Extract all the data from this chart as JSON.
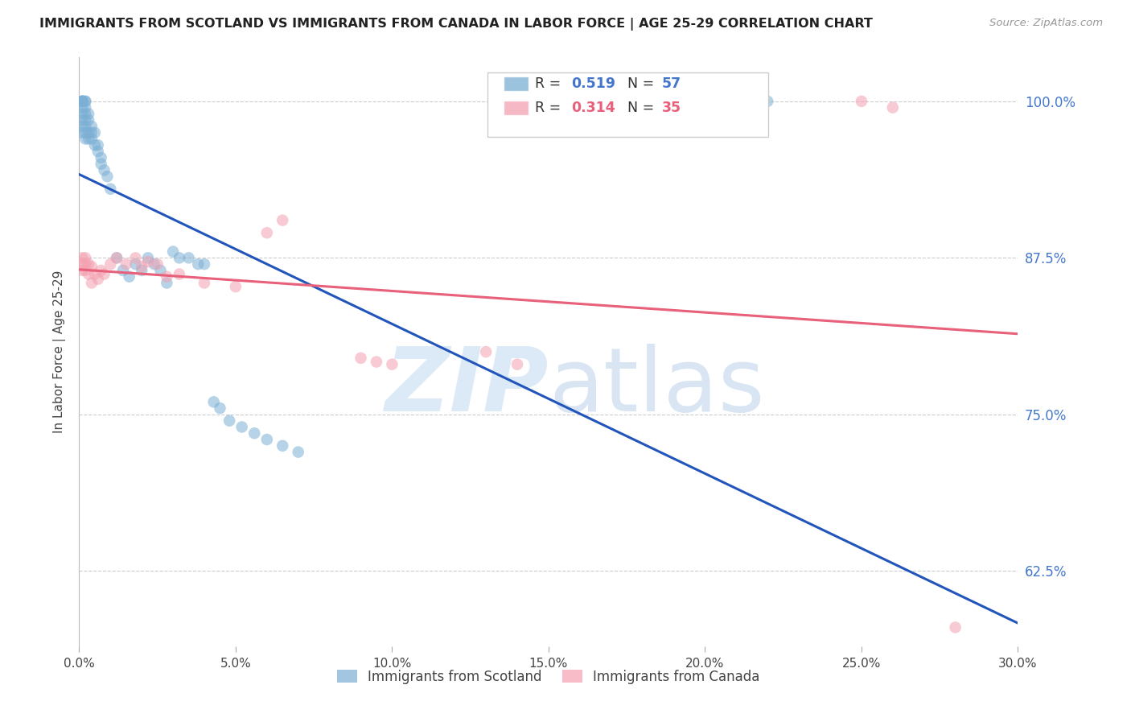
{
  "title": "IMMIGRANTS FROM SCOTLAND VS IMMIGRANTS FROM CANADA IN LABOR FORCE | AGE 25-29 CORRELATION CHART",
  "source": "Source: ZipAtlas.com",
  "ylabel": "In Labor Force | Age 25-29",
  "x_min": 0.0,
  "x_max": 0.3,
  "y_min": 0.565,
  "y_max": 1.035,
  "yticks": [
    0.625,
    0.75,
    0.875,
    1.0
  ],
  "ytick_labels": [
    "62.5%",
    "75.0%",
    "87.5%",
    "100.0%"
  ],
  "xticks": [
    0.0,
    0.05,
    0.1,
    0.15,
    0.2,
    0.25,
    0.3
  ],
  "xtick_labels": [
    "0.0%",
    "5.0%",
    "10.0%",
    "15.0%",
    "20.0%",
    "25.0%",
    "30.0%"
  ],
  "scotland_R": 0.519,
  "scotland_N": 57,
  "canada_R": 0.314,
  "canada_N": 35,
  "scotland_color": "#7BAFD4",
  "canada_color": "#F4A0B0",
  "scotland_line_color": "#2255BB",
  "canada_line_color": "#E8607A",
  "scotland_x": [
    0.001,
    0.001,
    0.001,
    0.001,
    0.001,
    0.001,
    0.001,
    0.001,
    0.001,
    0.001,
    0.002,
    0.002,
    0.002,
    0.002,
    0.002,
    0.002,
    0.002,
    0.002,
    0.003,
    0.003,
    0.003,
    0.003,
    0.004,
    0.004,
    0.004,
    0.005,
    0.005,
    0.006,
    0.006,
    0.007,
    0.007,
    0.008,
    0.009,
    0.01,
    0.012,
    0.014,
    0.016,
    0.018,
    0.02,
    0.022,
    0.024,
    0.026,
    0.028,
    0.03,
    0.032,
    0.035,
    0.038,
    0.04,
    0.043,
    0.045,
    0.048,
    0.052,
    0.056,
    0.06,
    0.065,
    0.07,
    0.22
  ],
  "scotland_y": [
    1.0,
    1.0,
    1.0,
    1.0,
    1.0,
    0.995,
    0.99,
    0.985,
    0.98,
    0.975,
    1.0,
    1.0,
    0.995,
    0.99,
    0.985,
    0.98,
    0.975,
    0.97,
    0.99,
    0.985,
    0.975,
    0.97,
    0.98,
    0.975,
    0.97,
    0.975,
    0.965,
    0.965,
    0.96,
    0.955,
    0.95,
    0.945,
    0.94,
    0.93,
    0.875,
    0.865,
    0.86,
    0.87,
    0.865,
    0.875,
    0.87,
    0.865,
    0.855,
    0.88,
    0.875,
    0.875,
    0.87,
    0.87,
    0.76,
    0.755,
    0.745,
    0.74,
    0.735,
    0.73,
    0.725,
    0.72,
    1.0
  ],
  "canada_x": [
    0.001,
    0.001,
    0.001,
    0.002,
    0.002,
    0.002,
    0.003,
    0.003,
    0.004,
    0.004,
    0.005,
    0.006,
    0.007,
    0.008,
    0.01,
    0.012,
    0.015,
    0.018,
    0.02,
    0.022,
    0.025,
    0.028,
    0.032,
    0.04,
    0.05,
    0.06,
    0.065,
    0.09,
    0.095,
    0.1,
    0.13,
    0.14,
    0.25,
    0.26,
    0.28
  ],
  "canada_y": [
    0.875,
    0.87,
    0.865,
    0.875,
    0.87,
    0.865,
    0.87,
    0.862,
    0.868,
    0.855,
    0.862,
    0.858,
    0.865,
    0.862,
    0.87,
    0.875,
    0.87,
    0.875,
    0.868,
    0.872,
    0.87,
    0.86,
    0.862,
    0.855,
    0.852,
    0.895,
    0.905,
    0.795,
    0.792,
    0.79,
    0.8,
    0.79,
    1.0,
    0.995,
    0.58
  ],
  "legend_items": [
    {
      "label": "Immigrants from Scotland",
      "color": "#7BAFD4"
    },
    {
      "label": "Immigrants from Canada",
      "color": "#F4A0B0"
    }
  ]
}
